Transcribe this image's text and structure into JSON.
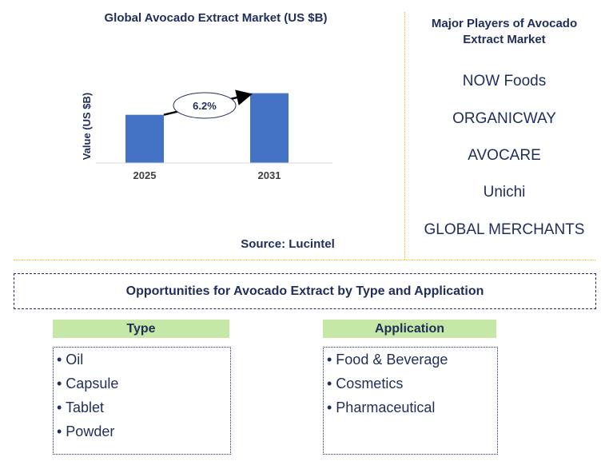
{
  "chart_data": {
    "type": "bar",
    "title": "Global Avocado Extract Market (US $B)",
    "ylabel": "Value (US $B)",
    "categories": [
      "2025",
      "2031"
    ],
    "values": [
      0.58,
      0.84
    ],
    "ylim": [
      0,
      1
    ],
    "annotation": "6.2%",
    "bar_color": "#4472c4",
    "source": "Source: Lucintel"
  },
  "players": {
    "title": "Major Players of Avocado Extract Market",
    "items": [
      "NOW Foods",
      "ORGANICWAY",
      "AVOCARE",
      "Unichi",
      "GLOBAL MERCHANTS"
    ]
  },
  "opportunities": {
    "title": "Opportunities for Avocado Extract by Type and Application",
    "header_color": "#c6e8a6",
    "type": {
      "label": "Type",
      "items": [
        "• Oil",
        "• Capsule",
        "• Tablet",
        "• Powder"
      ]
    },
    "application": {
      "label": "Application",
      "items": [
        "• Food & Beverage",
        "• Cosmetics",
        "• Pharmaceutical"
      ]
    }
  }
}
